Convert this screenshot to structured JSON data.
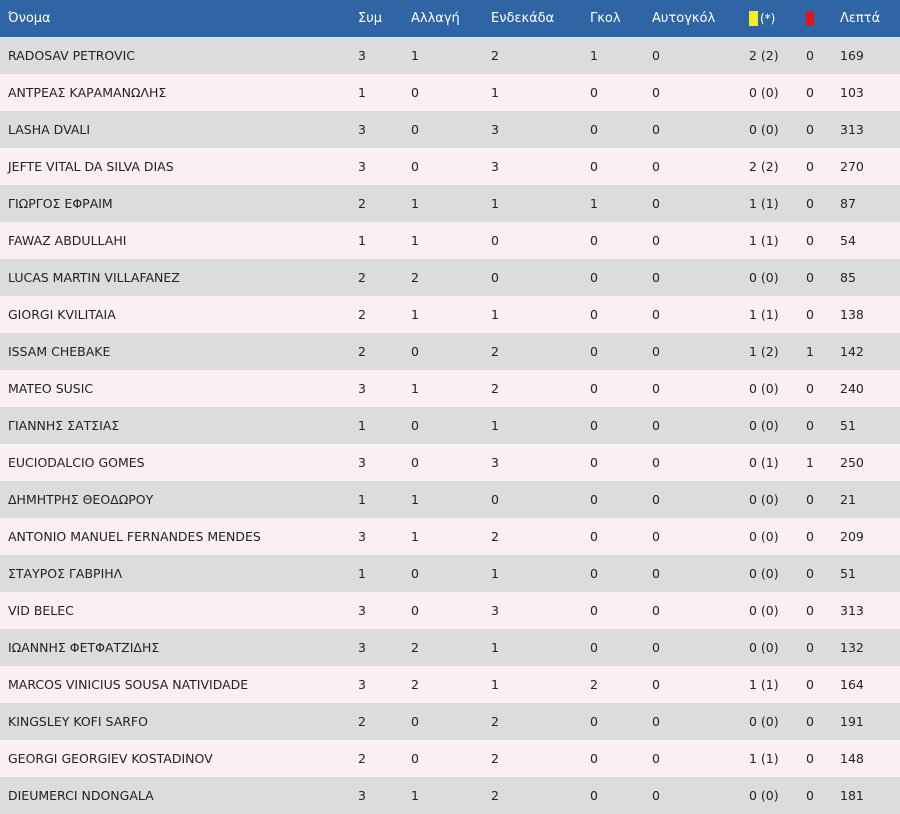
{
  "headers": {
    "name": "Όνομα",
    "apps": "Συμ",
    "sub": "Αλλαγή",
    "starting": "Ενδεκάδα",
    "goals": "Γκολ",
    "own_goals": "Αυτογκόλ",
    "yellow_suffix": "(*)",
    "minutes": "Λεπτά"
  },
  "card_colors": {
    "yellow": "#f3f017",
    "red": "#e0161c"
  },
  "rows": [
    {
      "name": "RADOSAV PETROVIC",
      "apps": "3",
      "sub": "1",
      "starting": "2",
      "goals": "1",
      "own_goals": "0",
      "yellow": "2 (2)",
      "red": "0",
      "minutes": "169"
    },
    {
      "name": "ΑΝΤΡΕΑΣ ΚΑΡΑΜΑΝΩΛΗΣ",
      "apps": "1",
      "sub": "0",
      "starting": "1",
      "goals": "0",
      "own_goals": "0",
      "yellow": "0 (0)",
      "red": "0",
      "minutes": "103"
    },
    {
      "name": "LASHA DVALI",
      "apps": "3",
      "sub": "0",
      "starting": "3",
      "goals": "0",
      "own_goals": "0",
      "yellow": "0 (0)",
      "red": "0",
      "minutes": "313"
    },
    {
      "name": "JEFTE VITAL DA SILVA DIAS",
      "apps": "3",
      "sub": "0",
      "starting": "3",
      "goals": "0",
      "own_goals": "0",
      "yellow": "2 (2)",
      "red": "0",
      "minutes": "270"
    },
    {
      "name": "ΓΙΩΡΓΟΣ ΕΦΡΑΙΜ",
      "apps": "2",
      "sub": "1",
      "starting": "1",
      "goals": "1",
      "own_goals": "0",
      "yellow": "1 (1)",
      "red": "0",
      "minutes": "87"
    },
    {
      "name": "FAWAZ ABDULLAHI",
      "apps": "1",
      "sub": "1",
      "starting": "0",
      "goals": "0",
      "own_goals": "0",
      "yellow": "1 (1)",
      "red": "0",
      "minutes": "54"
    },
    {
      "name": "LUCAS MARTIN VILLAFANEZ",
      "apps": "2",
      "sub": "2",
      "starting": "0",
      "goals": "0",
      "own_goals": "0",
      "yellow": "0 (0)",
      "red": "0",
      "minutes": "85"
    },
    {
      "name": "GIORGI KVILITAIA",
      "apps": "2",
      "sub": "1",
      "starting": "1",
      "goals": "0",
      "own_goals": "0",
      "yellow": "1 (1)",
      "red": "0",
      "minutes": "138"
    },
    {
      "name": "ISSAM CHEBAKE",
      "apps": "2",
      "sub": "0",
      "starting": "2",
      "goals": "0",
      "own_goals": "0",
      "yellow": "1 (2)",
      "red": "1",
      "minutes": "142"
    },
    {
      "name": "MATEO SUSIC",
      "apps": "3",
      "sub": "1",
      "starting": "2",
      "goals": "0",
      "own_goals": "0",
      "yellow": "0 (0)",
      "red": "0",
      "minutes": "240"
    },
    {
      "name": "ΓΙΑΝΝΗΣ ΣΑΤΣΙΑΣ",
      "apps": "1",
      "sub": "0",
      "starting": "1",
      "goals": "0",
      "own_goals": "0",
      "yellow": "0 (0)",
      "red": "0",
      "minutes": "51"
    },
    {
      "name": "EUCIODALCIO GOMES",
      "apps": "3",
      "sub": "0",
      "starting": "3",
      "goals": "0",
      "own_goals": "0",
      "yellow": "0 (1)",
      "red": "1",
      "minutes": "250"
    },
    {
      "name": "ΔΗΜΗΤΡΗΣ ΘΕΟΔΩΡΟΥ",
      "apps": "1",
      "sub": "1",
      "starting": "0",
      "goals": "0",
      "own_goals": "0",
      "yellow": "0 (0)",
      "red": "0",
      "minutes": "21"
    },
    {
      "name": "ANTONIO MANUEL FERNANDES MENDES",
      "apps": "3",
      "sub": "1",
      "starting": "2",
      "goals": "0",
      "own_goals": "0",
      "yellow": "0 (0)",
      "red": "0",
      "minutes": "209"
    },
    {
      "name": "ΣΤΑΥΡΟΣ ΓΑΒΡΙΗΛ",
      "apps": "1",
      "sub": "0",
      "starting": "1",
      "goals": "0",
      "own_goals": "0",
      "yellow": "0 (0)",
      "red": "0",
      "minutes": "51"
    },
    {
      "name": "VID BELEC",
      "apps": "3",
      "sub": "0",
      "starting": "3",
      "goals": "0",
      "own_goals": "0",
      "yellow": "0 (0)",
      "red": "0",
      "minutes": "313"
    },
    {
      "name": "ΙΩΑΝΝΗΣ ΦΕΤΦΑΤΖΙΔΗΣ",
      "apps": "3",
      "sub": "2",
      "starting": "1",
      "goals": "0",
      "own_goals": "0",
      "yellow": "0 (0)",
      "red": "0",
      "minutes": "132"
    },
    {
      "name": "MARCOS VINICIUS SOUSA NATIVIDADE",
      "apps": "3",
      "sub": "2",
      "starting": "1",
      "goals": "2",
      "own_goals": "0",
      "yellow": "1 (1)",
      "red": "0",
      "minutes": "164"
    },
    {
      "name": "KINGSLEY KOFI SARFO",
      "apps": "2",
      "sub": "0",
      "starting": "2",
      "goals": "0",
      "own_goals": "0",
      "yellow": "0 (0)",
      "red": "0",
      "minutes": "191"
    },
    {
      "name": "GEORGI GEORGIEV KOSTADINOV",
      "apps": "2",
      "sub": "0",
      "starting": "2",
      "goals": "0",
      "own_goals": "0",
      "yellow": "1 (1)",
      "red": "0",
      "minutes": "148"
    },
    {
      "name": "DIEUMERCI NDONGALA",
      "apps": "3",
      "sub": "1",
      "starting": "2",
      "goals": "0",
      "own_goals": "0",
      "yellow": "0 (0)",
      "red": "0",
      "minutes": "181"
    }
  ]
}
